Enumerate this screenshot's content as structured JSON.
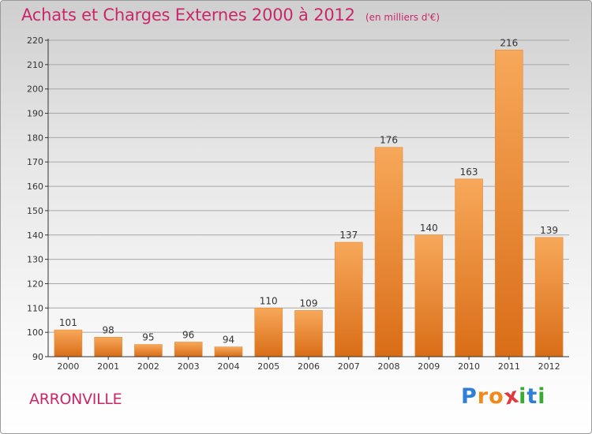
{
  "title": "Achats et Charges Externes 2000 à 2012",
  "subtitle": "(en milliers d'€)",
  "place_name": "ARRONVILLE",
  "logo": {
    "text": "Proxiti",
    "letters": [
      {
        "char": "P",
        "color": "#2f7fd6"
      },
      {
        "char": "r",
        "color": "#f08a1a"
      },
      {
        "char": "o",
        "color": "#f08a1a"
      },
      {
        "char": "x",
        "color": "#e0393e"
      },
      {
        "char": "i",
        "color": "#3aaa35"
      },
      {
        "char": "t",
        "color": "#2f7fd6"
      },
      {
        "char": "i",
        "color": "#3aaa35"
      }
    ]
  },
  "colors": {
    "title": "#c8286a",
    "bar_light": "#f7a85a",
    "bar_dark": "#d96d17",
    "grid": "#a8a8a8",
    "axis": "#333333"
  },
  "chart_data": {
    "type": "bar",
    "title": "Achats et Charges Externes 2000 à 2012",
    "subtitle": "(en milliers d'€)",
    "xlabel": "",
    "ylabel": "",
    "categories": [
      "2000",
      "2001",
      "2002",
      "2003",
      "2004",
      "2005",
      "2006",
      "2007",
      "2008",
      "2009",
      "2010",
      "2011",
      "2012"
    ],
    "values": [
      101,
      98,
      95,
      96,
      94,
      110,
      109,
      137,
      176,
      140,
      163,
      216,
      139
    ],
    "ylim": [
      90,
      220
    ],
    "yticks": [
      90,
      100,
      110,
      120,
      130,
      140,
      150,
      160,
      170,
      180,
      190,
      200,
      210,
      220
    ],
    "grid": true,
    "data_labels": true
  }
}
